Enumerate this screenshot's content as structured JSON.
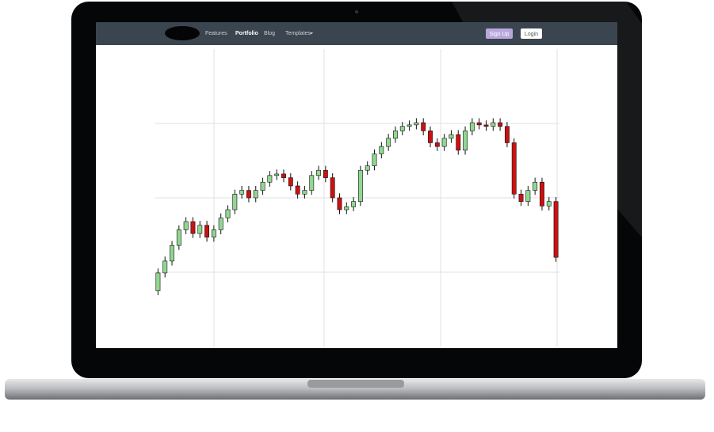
{
  "nav": {
    "links": [
      "Features",
      "Portfolio",
      "Blog",
      "Templates"
    ],
    "buttons": [
      "Sign Up",
      "Login"
    ]
  },
  "chart_data": {
    "type": "candlestick",
    "up_color": "#90d890",
    "down_color": "#cc1111",
    "grid": true,
    "ylim": [
      0,
      400
    ],
    "yticks": [
      100,
      200,
      300
    ],
    "open": [
      75,
      99,
      115,
      136,
      157,
      168,
      152,
      163,
      147,
      157,
      173,
      184,
      205,
      210,
      200,
      210,
      221,
      230,
      232,
      227,
      216,
      205,
      210,
      230,
      237,
      227,
      200,
      184,
      188,
      195,
      237,
      243,
      259,
      269,
      280,
      290,
      296,
      298,
      301,
      290,
      274,
      269,
      280,
      285,
      264,
      290,
      301,
      298,
      296,
      301,
      296,
      274,
      205,
      195,
      210,
      221,
      189,
      195
    ],
    "high": [
      105,
      121,
      142,
      163,
      174,
      174,
      169,
      169,
      163,
      179,
      190,
      211,
      216,
      216,
      216,
      227,
      236,
      238,
      238,
      233,
      222,
      216,
      236,
      243,
      243,
      233,
      206,
      194,
      201,
      243,
      249,
      265,
      275,
      286,
      296,
      302,
      304,
      307,
      307,
      296,
      280,
      286,
      291,
      291,
      296,
      307,
      307,
      304,
      307,
      307,
      302,
      280,
      211,
      216,
      227,
      227,
      201,
      201
    ],
    "low": [
      69,
      93,
      109,
      130,
      151,
      146,
      146,
      141,
      141,
      151,
      167,
      178,
      199,
      194,
      194,
      204,
      215,
      224,
      221,
      210,
      199,
      199,
      204,
      224,
      221,
      194,
      178,
      178,
      182,
      189,
      231,
      237,
      253,
      263,
      274,
      284,
      290,
      292,
      284,
      268,
      263,
      263,
      274,
      258,
      258,
      284,
      292,
      290,
      290,
      290,
      268,
      199,
      189,
      189,
      204,
      183,
      183,
      114
    ],
    "close": [
      99,
      115,
      136,
      157,
      168,
      152,
      163,
      147,
      157,
      173,
      184,
      205,
      210,
      200,
      210,
      221,
      230,
      232,
      227,
      216,
      205,
      210,
      230,
      237,
      227,
      200,
      184,
      188,
      195,
      237,
      243,
      259,
      269,
      280,
      290,
      296,
      298,
      301,
      290,
      274,
      269,
      280,
      285,
      264,
      290,
      301,
      298,
      296,
      301,
      296,
      274,
      205,
      195,
      210,
      221,
      189,
      195,
      120
    ]
  }
}
